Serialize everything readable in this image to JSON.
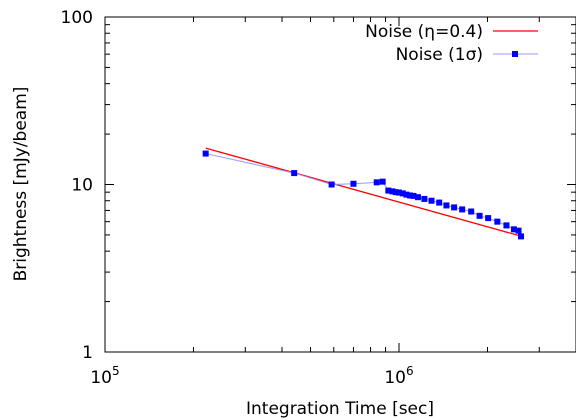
{
  "chart_data": {
    "type": "line",
    "xlabel": "Integration Time [sec]",
    "ylabel": "Brightness [mJy/beam]",
    "xscale": "log",
    "yscale": "log",
    "xlim": [
      100000,
      4000000
    ],
    "ylim": [
      1,
      100
    ],
    "grid": false,
    "legend": "top-right",
    "x_ticks": [
      {
        "value": 100000,
        "base": "10",
        "exp": "5"
      },
      {
        "value": 1000000,
        "base": "10",
        "exp": "6"
      }
    ],
    "y_ticks": [
      {
        "value": 1,
        "label": "1"
      },
      {
        "value": 10,
        "label": "10"
      },
      {
        "value": 100,
        "label": "100"
      }
    ],
    "series": [
      {
        "name": "Noise (η=0.4)",
        "color": "#ff0000",
        "marker": "none",
        "x": [
          220000,
          2620000
        ],
        "y": [
          16.5,
          4.9
        ]
      },
      {
        "name": "Noise (1σ)",
        "color": "#0000ff",
        "line_color": "#9999ff",
        "marker": "square",
        "x": [
          220000,
          440000,
          590000,
          700000,
          840000,
          880000,
          920000,
          950000,
          975000,
          1000000,
          1030000,
          1060000,
          1090000,
          1120000,
          1160000,
          1220000,
          1290000,
          1370000,
          1450000,
          1540000,
          1640000,
          1760000,
          1880000,
          2010000,
          2160000,
          2320000,
          2460000,
          2550000,
          2600000
        ],
        "y": [
          15.3,
          11.7,
          10.0,
          10.1,
          10.3,
          10.4,
          9.2,
          9.1,
          9.0,
          8.95,
          8.85,
          8.7,
          8.6,
          8.55,
          8.4,
          8.2,
          8.0,
          7.8,
          7.5,
          7.3,
          7.1,
          6.9,
          6.5,
          6.3,
          6.0,
          5.7,
          5.4,
          5.3,
          4.9
        ]
      }
    ]
  }
}
